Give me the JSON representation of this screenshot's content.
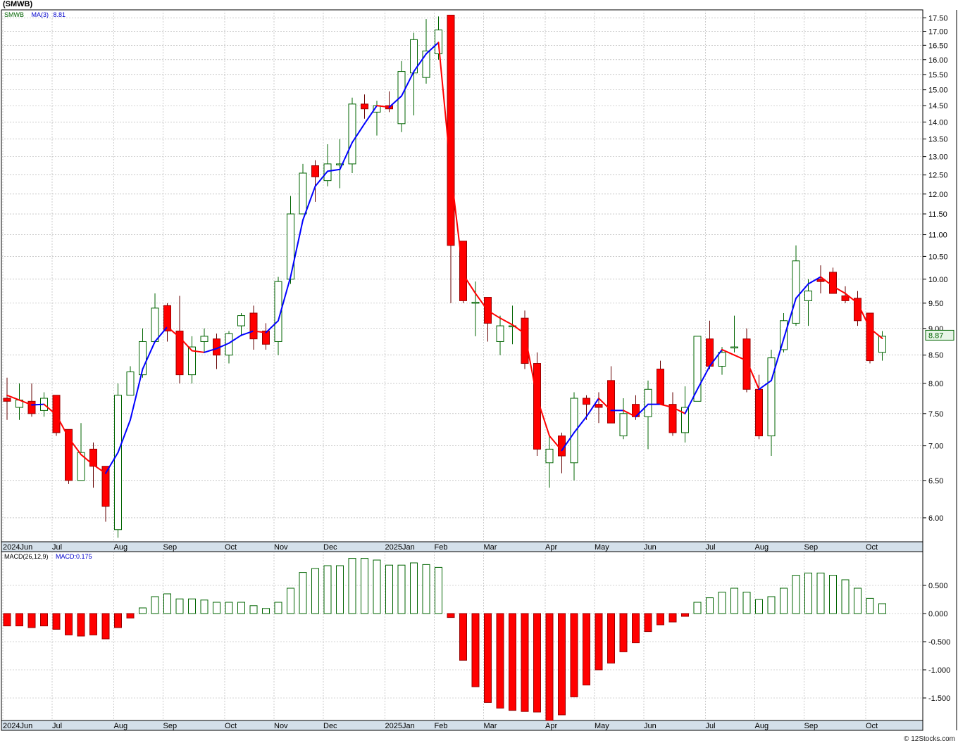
{
  "header": {
    "symbol": "(SMWB)"
  },
  "footer": {
    "credit": "© 12Stocks.com"
  },
  "colors": {
    "up": "#006400",
    "down": "#ff0000",
    "ma_up": "#0000ff",
    "ma_down": "#ff0000",
    "grid": "#aaaaaa",
    "axis_band": "#d4e0ea",
    "last_price_bg": "#e8f5e8"
  },
  "legend": {
    "symbol_label": "SMWB",
    "ma_label": "MA(3)",
    "ma_value": "8.81",
    "macd_label": "MACD(26,12,9)",
    "macd_value": "MACD:0.175",
    "last_price": "8.87"
  },
  "chart_data": [
    {
      "type": "candlestick",
      "title": "(SMWB)",
      "scale": "log",
      "ylim": [
        5.7,
        17.8
      ],
      "yticks": [
        "6.00",
        "6.50",
        "7.00",
        "7.50",
        "8.00",
        "8.50",
        "9.00",
        "9.50",
        "10.00",
        "10.50",
        "11.00",
        "11.50",
        "12.00",
        "12.50",
        "13.00",
        "13.50",
        "14.00",
        "14.50",
        "15.00",
        "15.50",
        "16.00",
        "16.50",
        "17.00",
        "17.50"
      ],
      "x_labels": [
        {
          "label": "2024Jun",
          "index": 0
        },
        {
          "label": "Jul",
          "index": 4
        },
        {
          "label": "Aug",
          "index": 9
        },
        {
          "label": "Sep",
          "index": 13
        },
        {
          "label": "Oct",
          "index": 18
        },
        {
          "label": "Nov",
          "index": 22
        },
        {
          "label": "Dec",
          "index": 26
        },
        {
          "label": "2025Jan",
          "index": 31
        },
        {
          "label": "Feb",
          "index": 35
        },
        {
          "label": "Mar",
          "index": 39
        },
        {
          "label": "Apr",
          "index": 44
        },
        {
          "label": "May",
          "index": 48
        },
        {
          "label": "Jun",
          "index": 52
        },
        {
          "label": "Jul",
          "index": 57
        },
        {
          "label": "Aug",
          "index": 61
        },
        {
          "label": "Sep",
          "index": 65
        },
        {
          "label": "Oct",
          "index": 70
        }
      ],
      "candles": [
        {
          "o": 7.75,
          "h": 8.1,
          "l": 7.4,
          "c": 7.7
        },
        {
          "o": 7.6,
          "h": 8.0,
          "l": 7.4,
          "c": 7.72
        },
        {
          "o": 7.7,
          "h": 8.0,
          "l": 7.45,
          "c": 7.5
        },
        {
          "o": 7.55,
          "h": 7.85,
          "l": 7.45,
          "c": 7.75
        },
        {
          "o": 7.8,
          "h": 7.8,
          "l": 7.15,
          "c": 7.2
        },
        {
          "o": 7.25,
          "h": 7.25,
          "l": 6.45,
          "c": 6.5
        },
        {
          "o": 6.5,
          "h": 7.35,
          "l": 6.5,
          "c": 6.9
        },
        {
          "o": 6.95,
          "h": 7.05,
          "l": 6.4,
          "c": 6.7
        },
        {
          "o": 6.7,
          "h": 6.7,
          "l": 5.95,
          "c": 6.15
        },
        {
          "o": 5.85,
          "h": 8.0,
          "l": 5.75,
          "c": 7.8
        },
        {
          "o": 7.8,
          "h": 8.3,
          "l": 7.8,
          "c": 8.2
        },
        {
          "o": 8.15,
          "h": 9.0,
          "l": 8.1,
          "c": 8.75
        },
        {
          "o": 8.75,
          "h": 9.7,
          "l": 8.75,
          "c": 9.4
        },
        {
          "o": 9.45,
          "h": 9.5,
          "l": 8.75,
          "c": 8.95
        },
        {
          "o": 8.95,
          "h": 9.65,
          "l": 8.0,
          "c": 8.15
        },
        {
          "o": 8.15,
          "h": 8.85,
          "l": 8.0,
          "c": 8.65
        },
        {
          "o": 8.75,
          "h": 9.0,
          "l": 8.55,
          "c": 8.85
        },
        {
          "o": 8.8,
          "h": 8.9,
          "l": 8.25,
          "c": 8.5
        },
        {
          "o": 8.5,
          "h": 8.95,
          "l": 8.35,
          "c": 8.9
        },
        {
          "o": 9.05,
          "h": 9.3,
          "l": 8.85,
          "c": 9.25
        },
        {
          "o": 9.3,
          "h": 9.45,
          "l": 8.6,
          "c": 8.8
        },
        {
          "o": 8.95,
          "h": 9.1,
          "l": 8.6,
          "c": 8.7
        },
        {
          "o": 8.75,
          "h": 10.05,
          "l": 8.5,
          "c": 9.95
        },
        {
          "o": 10.0,
          "h": 11.95,
          "l": 9.9,
          "c": 11.5
        },
        {
          "o": 11.5,
          "h": 12.8,
          "l": 11.5,
          "c": 12.55
        },
        {
          "o": 12.75,
          "h": 12.9,
          "l": 11.8,
          "c": 12.45
        },
        {
          "o": 12.35,
          "h": 13.35,
          "l": 12.2,
          "c": 12.8
        },
        {
          "o": 12.8,
          "h": 13.5,
          "l": 12.15,
          "c": 12.8
        },
        {
          "o": 12.8,
          "h": 14.75,
          "l": 12.55,
          "c": 14.55
        },
        {
          "o": 14.55,
          "h": 14.85,
          "l": 14.1,
          "c": 14.4
        },
        {
          "o": 14.3,
          "h": 14.65,
          "l": 13.6,
          "c": 14.5
        },
        {
          "o": 14.5,
          "h": 14.95,
          "l": 14.3,
          "c": 14.4
        },
        {
          "o": 13.95,
          "h": 15.95,
          "l": 13.7,
          "c": 15.6
        },
        {
          "o": 15.55,
          "h": 16.95,
          "l": 14.2,
          "c": 16.7
        },
        {
          "o": 15.4,
          "h": 17.45,
          "l": 15.2,
          "c": 16.3
        },
        {
          "o": 16.2,
          "h": 17.55,
          "l": 16.0,
          "c": 17.05
        },
        {
          "o": 17.6,
          "h": 17.6,
          "l": 9.5,
          "c": 10.75
        },
        {
          "o": 10.85,
          "h": 10.85,
          "l": 9.5,
          "c": 9.55
        },
        {
          "o": 9.5,
          "h": 9.95,
          "l": 8.85,
          "c": 9.52
        },
        {
          "o": 9.62,
          "h": 9.62,
          "l": 8.75,
          "c": 9.1
        },
        {
          "o": 8.75,
          "h": 9.25,
          "l": 8.5,
          "c": 9.05
        },
        {
          "o": 9.05,
          "h": 9.45,
          "l": 8.7,
          "c": 9.05
        },
        {
          "o": 9.2,
          "h": 9.35,
          "l": 8.25,
          "c": 8.35
        },
        {
          "o": 8.35,
          "h": 8.55,
          "l": 6.85,
          "c": 6.95
        },
        {
          "o": 6.75,
          "h": 7.15,
          "l": 6.4,
          "c": 6.95
        },
        {
          "o": 7.15,
          "h": 7.2,
          "l": 6.6,
          "c": 6.85
        },
        {
          "o": 6.75,
          "h": 7.85,
          "l": 6.5,
          "c": 7.75
        },
        {
          "o": 7.75,
          "h": 7.8,
          "l": 7.4,
          "c": 7.65
        },
        {
          "o": 7.65,
          "h": 7.85,
          "l": 7.35,
          "c": 7.6
        },
        {
          "o": 8.05,
          "h": 8.3,
          "l": 7.35,
          "c": 7.35
        },
        {
          "o": 7.15,
          "h": 7.75,
          "l": 7.1,
          "c": 7.5
        },
        {
          "o": 7.65,
          "h": 7.8,
          "l": 7.4,
          "c": 7.45
        },
        {
          "o": 7.45,
          "h": 8.05,
          "l": 6.95,
          "c": 7.9
        },
        {
          "o": 8.25,
          "h": 8.4,
          "l": 7.65,
          "c": 7.65
        },
        {
          "o": 7.65,
          "h": 7.85,
          "l": 7.15,
          "c": 7.2
        },
        {
          "o": 7.2,
          "h": 7.95,
          "l": 7.05,
          "c": 7.6
        },
        {
          "o": 7.7,
          "h": 8.85,
          "l": 7.7,
          "c": 8.85
        },
        {
          "o": 8.8,
          "h": 9.15,
          "l": 8.25,
          "c": 8.3
        },
        {
          "o": 8.3,
          "h": 8.65,
          "l": 8.15,
          "c": 8.55
        },
        {
          "o": 8.65,
          "h": 9.25,
          "l": 8.55,
          "c": 8.65
        },
        {
          "o": 8.8,
          "h": 9.0,
          "l": 7.85,
          "c": 7.9
        },
        {
          "o": 7.9,
          "h": 8.15,
          "l": 7.1,
          "c": 7.15
        },
        {
          "o": 7.15,
          "h": 8.6,
          "l": 6.85,
          "c": 8.45
        },
        {
          "o": 8.6,
          "h": 9.3,
          "l": 8.55,
          "c": 9.15
        },
        {
          "o": 9.1,
          "h": 10.75,
          "l": 9.05,
          "c": 10.4
        },
        {
          "o": 9.55,
          "h": 10.0,
          "l": 9.05,
          "c": 9.75
        },
        {
          "o": 10.0,
          "h": 10.3,
          "l": 9.7,
          "c": 9.95
        },
        {
          "o": 10.15,
          "h": 10.25,
          "l": 9.7,
          "c": 9.7
        },
        {
          "o": 9.65,
          "h": 9.85,
          "l": 9.5,
          "c": 9.55
        },
        {
          "o": 9.6,
          "h": 9.75,
          "l": 9.05,
          "c": 9.15
        },
        {
          "o": 9.3,
          "h": 9.3,
          "l": 8.35,
          "c": 8.4
        },
        {
          "o": 8.55,
          "h": 8.95,
          "l": 8.4,
          "c": 8.85
        }
      ],
      "ma3": [
        7.8,
        7.72,
        7.64,
        7.65,
        7.48,
        7.12,
        6.87,
        6.72,
        6.6,
        6.9,
        7.4,
        8.25,
        8.75,
        9.03,
        8.83,
        8.58,
        8.55,
        8.62,
        8.72,
        8.87,
        8.95,
        8.92,
        9.15,
        10.05,
        11.35,
        12.2,
        12.6,
        12.65,
        13.4,
        13.95,
        14.5,
        14.45,
        14.8,
        15.6,
        16.2,
        16.6,
        12.6,
        10.1,
        9.7,
        9.35,
        9.2,
        9.07,
        8.9,
        7.75,
        7.15,
        6.93,
        7.2,
        7.45,
        7.75,
        7.55,
        7.55,
        7.45,
        7.65,
        7.65,
        7.6,
        7.5,
        7.9,
        8.3,
        8.6,
        8.5,
        8.4,
        7.9,
        8.05,
        8.8,
        9.6,
        9.9,
        10.05,
        9.85,
        9.7,
        9.5,
        9.0,
        8.81
      ]
    },
    {
      "type": "bar",
      "title": "MACD(26,12,9)",
      "ylim": [
        -1.9,
        1.1
      ],
      "yticks": [
        "-1.500",
        "-1.000",
        "-0.500",
        "0.000",
        "0.500"
      ],
      "values": [
        -0.22,
        -0.22,
        -0.25,
        -0.22,
        -0.28,
        -0.38,
        -0.4,
        -0.38,
        -0.45,
        -0.25,
        -0.08,
        0.1,
        0.3,
        0.35,
        0.26,
        0.26,
        0.24,
        0.2,
        0.2,
        0.2,
        0.14,
        0.09,
        0.2,
        0.45,
        0.73,
        0.8,
        0.85,
        0.85,
        0.98,
        0.98,
        0.95,
        0.86,
        0.86,
        0.9,
        0.87,
        0.82,
        -0.07,
        -0.83,
        -1.3,
        -1.58,
        -1.68,
        -1.72,
        -1.74,
        -1.75,
        -1.9,
        -1.8,
        -1.48,
        -1.27,
        -1.0,
        -0.88,
        -0.68,
        -0.52,
        -0.32,
        -0.2,
        -0.15,
        -0.05,
        0.2,
        0.28,
        0.38,
        0.45,
        0.38,
        0.25,
        0.3,
        0.45,
        0.68,
        0.72,
        0.72,
        0.68,
        0.6,
        0.45,
        0.27,
        0.175
      ]
    }
  ]
}
